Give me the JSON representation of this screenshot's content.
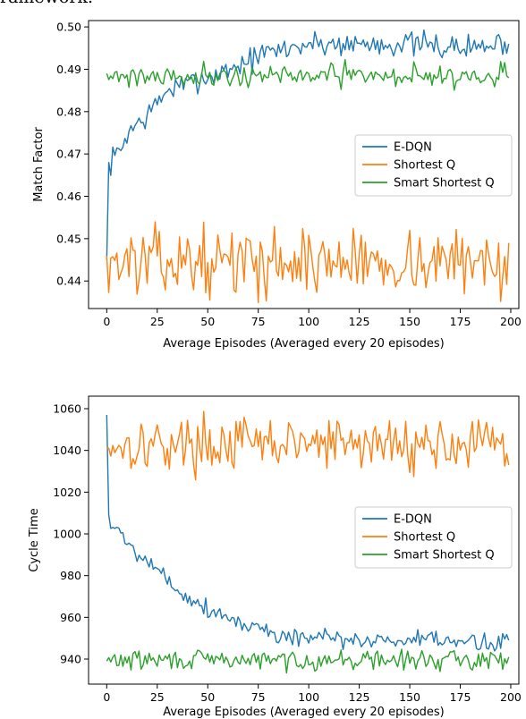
{
  "header_fragment": "ramework.",
  "colors": {
    "edqn": "#1f77b4",
    "shortest_q": "#ff7f0e",
    "smart_shortest_q": "#2ca02c"
  },
  "chart_data": [
    {
      "type": "line",
      "xlabel": "Average Episodes (Averaged every 20 episodes)",
      "ylabel": "Match Factor",
      "xlim": [
        -9,
        204
      ],
      "ylim": [
        0.4335,
        0.5015
      ],
      "xticks": [
        0,
        25,
        50,
        75,
        100,
        125,
        150,
        175,
        200
      ],
      "yticks": [
        0.44,
        0.45,
        0.46,
        0.47,
        0.48,
        0.49,
        0.5
      ],
      "ytick_labels": [
        "0.44",
        "0.45",
        "0.46",
        "0.47",
        "0.48",
        "0.49",
        "0.50"
      ],
      "legend": "center-right",
      "series": [
        {
          "name": "E-DQN",
          "color": "#1f77b4",
          "kind": "trend",
          "points": [
            [
              0,
              0.445
            ],
            [
              1,
              0.467
            ],
            [
              2,
              0.468
            ],
            [
              5,
              0.47
            ],
            [
              8,
              0.472
            ],
            [
              10,
              0.475
            ],
            [
              15,
              0.477
            ],
            [
              20,
              0.479
            ],
            [
              25,
              0.482
            ],
            [
              30,
              0.485
            ],
            [
              35,
              0.486
            ],
            [
              40,
              0.486
            ],
            [
              45,
              0.488
            ],
            [
              50,
              0.488
            ],
            [
              55,
              0.489
            ],
            [
              60,
              0.49
            ],
            [
              65,
              0.491
            ],
            [
              70,
              0.492
            ],
            [
              75,
              0.493
            ],
            [
              80,
              0.494
            ],
            [
              90,
              0.495
            ],
            [
              100,
              0.496
            ],
            [
              125,
              0.496
            ],
            [
              150,
              0.496
            ],
            [
              175,
              0.495
            ],
            [
              199,
              0.496
            ]
          ],
          "noise": 0.0018,
          "seed": 7
        },
        {
          "name": "Shortest Q",
          "color": "#ff7f0e",
          "kind": "noisy",
          "mean": 0.4445,
          "noise": 0.0045,
          "seed": 13,
          "points": [
            [
              0,
              0.446
            ],
            [
              199,
              0.449
            ]
          ]
        },
        {
          "name": "Smart Shortest Q",
          "color": "#2ca02c",
          "kind": "noisy",
          "mean": 0.4885,
          "noise": 0.0016,
          "seed": 21,
          "points": [
            [
              0,
              0.489
            ],
            [
              199,
              0.488
            ]
          ]
        }
      ]
    },
    {
      "type": "line",
      "xlabel": "Average Episodes (Averaged every 20 episodes)",
      "ylabel": "Cycle Time",
      "xlim": [
        -9,
        204
      ],
      "ylim": [
        928,
        1066
      ],
      "xticks": [
        0,
        25,
        50,
        75,
        100,
        125,
        150,
        175,
        200
      ],
      "yticks": [
        940,
        960,
        980,
        1000,
        1020,
        1040,
        1060
      ],
      "ytick_labels": [
        "940",
        "960",
        "980",
        "1000",
        "1020",
        "1040",
        "1060"
      ],
      "legend": "center-right",
      "series": [
        {
          "name": "E-DQN",
          "color": "#1f77b4",
          "kind": "trend",
          "points": [
            [
              0,
              1057
            ],
            [
              1,
              1007
            ],
            [
              3,
              1005
            ],
            [
              8,
              998
            ],
            [
              12,
              994
            ],
            [
              18,
              990
            ],
            [
              25,
              983
            ],
            [
              30,
              978
            ],
            [
              35,
              974
            ],
            [
              40,
              970
            ],
            [
              45,
              967
            ],
            [
              50,
              964
            ],
            [
              55,
              962
            ],
            [
              60,
              960
            ],
            [
              65,
              958
            ],
            [
              70,
              956
            ],
            [
              75,
              955
            ],
            [
              80,
              953
            ],
            [
              90,
              951
            ],
            [
              100,
              950
            ],
            [
              125,
              949
            ],
            [
              150,
              949
            ],
            [
              175,
              948
            ],
            [
              190,
              948
            ],
            [
              199,
              949
            ]
          ],
          "noise": 2.8,
          "seed": 5
        },
        {
          "name": "Shortest Q",
          "color": "#ff7f0e",
          "kind": "noisy",
          "mean": 1043,
          "noise": 7.5,
          "seed": 17,
          "points": [
            [
              0,
              1041
            ],
            [
              199,
              1033
            ]
          ]
        },
        {
          "name": "Smart Shortest Q",
          "color": "#2ca02c",
          "kind": "noisy",
          "mean": 939.5,
          "noise": 2.8,
          "seed": 29,
          "points": [
            [
              0,
              939
            ],
            [
              199,
              941
            ]
          ]
        }
      ]
    }
  ]
}
